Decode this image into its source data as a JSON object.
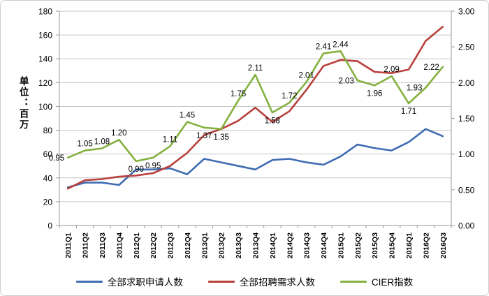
{
  "chart_data": {
    "type": "line",
    "title": "",
    "unit_label": "单位：百万",
    "categories": [
      "2011Q1",
      "2011Q2",
      "2011Q3",
      "2011Q4",
      "2012Q1",
      "2012Q2",
      "2012Q3",
      "2012Q4",
      "2013Q1",
      "2013Q2",
      "2013Q3",
      "2013Q4",
      "2014Q1",
      "2014Q2",
      "2014Q3",
      "2014Q4",
      "2015Q1",
      "2015Q2",
      "2015Q3",
      "2015Q4",
      "2016Q1",
      "2016Q2",
      "2016Q3"
    ],
    "series": [
      {
        "name": "全部求职申请人数",
        "axis": "left",
        "color": "#3F6CB3",
        "values": [
          32,
          36,
          36,
          34,
          47,
          47,
          48,
          43,
          56,
          53,
          50,
          47,
          55,
          56,
          53,
          51,
          58,
          68,
          65,
          63,
          70,
          81,
          75
        ]
      },
      {
        "name": "全部招聘需求人数",
        "axis": "left",
        "color": "#B8403C",
        "values": [
          31,
          38,
          39,
          41,
          42,
          44,
          50,
          61,
          76,
          81,
          88,
          99,
          87,
          96,
          114,
          134,
          139,
          138,
          129,
          128,
          131,
          155,
          167
        ]
      },
      {
        "name": "CIER指数",
        "axis": "right",
        "color": "#84B13F",
        "values": [
          0.95,
          1.05,
          1.08,
          1.2,
          0.9,
          0.95,
          1.11,
          1.45,
          1.37,
          1.35,
          1.75,
          2.11,
          1.58,
          1.72,
          2.01,
          2.41,
          2.44,
          2.03,
          1.96,
          2.09,
          1.71,
          1.93,
          2.22
        ],
        "labels": [
          "0.95",
          "1.05",
          "1.08",
          "1.20",
          "0.90",
          "0.95",
          "1.11",
          "1.45",
          "1.37",
          "1.35",
          "1.75",
          "2.11",
          "1.58",
          "1.72",
          "2.01",
          "2.41",
          "2.44",
          "2.03",
          "1.96",
          "2.09",
          "1.71",
          "1.93",
          "2.22"
        ],
        "label_pos": [
          "l",
          "a",
          "a",
          "a",
          "b",
          "b",
          "a",
          "a",
          "b",
          "b",
          "a",
          "a",
          "b",
          "a",
          "a",
          "a",
          "a",
          "l",
          "b",
          "a",
          "b",
          "l",
          "l"
        ]
      }
    ],
    "left_axis": {
      "min": 0,
      "max": 180,
      "step": 20,
      "tick_labels": [
        "0",
        "20",
        "40",
        "60",
        "80",
        "100",
        "120",
        "140",
        "160",
        "180"
      ]
    },
    "right_axis": {
      "min": 0,
      "max": 3,
      "step": 0.5,
      "tick_labels": [
        "0.00",
        "0.50",
        "1.00",
        "1.50",
        "2.00",
        "2.50",
        "3.00"
      ]
    },
    "grid": true,
    "legend_position": "bottom"
  }
}
